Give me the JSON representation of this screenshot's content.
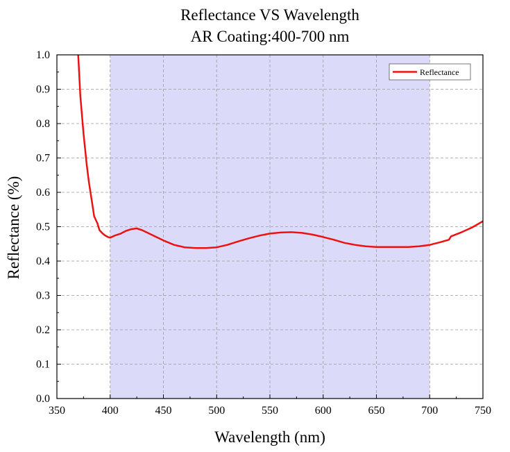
{
  "chart_data": {
    "type": "line",
    "title": "Reflectance VS Wavelength",
    "subtitle": "AR Coating:400-700 nm",
    "xlabel": "Wavelength (nm)",
    "ylabel": "Reflectance (%)",
    "xlim": [
      350,
      750
    ],
    "ylim": [
      0.0,
      1.0
    ],
    "xticks": [
      "350",
      "400",
      "450",
      "500",
      "550",
      "600",
      "650",
      "700",
      "750"
    ],
    "yticks": [
      "0.0",
      "0.1",
      "0.2",
      "0.3",
      "0.4",
      "0.5",
      "0.6",
      "0.7",
      "0.8",
      "0.9",
      "1.0"
    ],
    "grid": true,
    "legend_position": "top-right",
    "highlight_band": {
      "x_range": [
        400,
        700
      ],
      "color": "#dcdaf9"
    },
    "series": [
      {
        "name": "Reflectance",
        "color": "#ee1111",
        "x": [
          370,
          372,
          375,
          378,
          380,
          383,
          385,
          388,
          390,
          393,
          395,
          398,
          400,
          405,
          410,
          415,
          420,
          425,
          430,
          440,
          450,
          460,
          470,
          480,
          490,
          500,
          510,
          520,
          530,
          540,
          550,
          560,
          570,
          580,
          590,
          600,
          610,
          620,
          630,
          640,
          650,
          660,
          670,
          680,
          690,
          700,
          710,
          718,
          720,
          730,
          740,
          750
        ],
        "values": [
          1.0,
          0.88,
          0.77,
          0.68,
          0.63,
          0.57,
          0.53,
          0.51,
          0.49,
          0.48,
          0.475,
          0.47,
          0.468,
          0.475,
          0.48,
          0.488,
          0.493,
          0.495,
          0.49,
          0.475,
          0.46,
          0.447,
          0.44,
          0.438,
          0.438,
          0.44,
          0.447,
          0.457,
          0.466,
          0.474,
          0.48,
          0.483,
          0.484,
          0.482,
          0.477,
          0.47,
          0.462,
          0.453,
          0.447,
          0.443,
          0.441,
          0.441,
          0.441,
          0.441,
          0.443,
          0.447,
          0.455,
          0.462,
          0.472,
          0.484,
          0.498,
          0.516
        ]
      }
    ]
  }
}
